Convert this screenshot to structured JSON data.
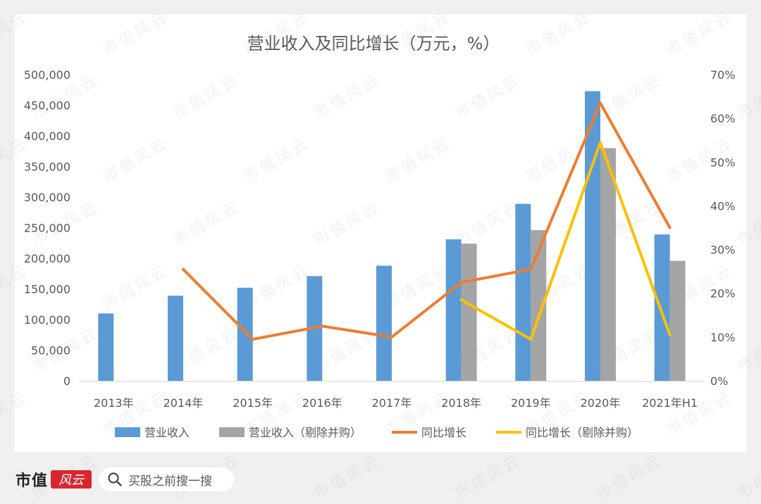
{
  "chart_data": {
    "type": "bar+line",
    "title": "营业收入及同比增长（万元，%）",
    "categories": [
      "2013年",
      "2014年",
      "2015年",
      "2016年",
      "2017年",
      "2018年",
      "2019年",
      "2020年",
      "2021年H1"
    ],
    "y_left": {
      "range": [
        0,
        500000
      ],
      "ticks": [
        "0",
        "50,000",
        "100,000",
        "150,000",
        "200,000",
        "250,000",
        "300,000",
        "350,000",
        "400,000",
        "450,000",
        "500,000"
      ]
    },
    "y_right": {
      "range": [
        0,
        70
      ],
      "ticks": [
        "0%",
        "10%",
        "20%",
        "30%",
        "40%",
        "50%",
        "60%",
        "70%"
      ]
    },
    "series": [
      {
        "name": "营业收入",
        "kind": "bar",
        "axis": "left",
        "color": "#5b9bd5",
        "values": [
          110000,
          139000,
          152000,
          171000,
          188000,
          231000,
          289000,
          473000,
          239000
        ]
      },
      {
        "name": "营业收入（剔除并购）",
        "kind": "bar",
        "axis": "left",
        "color": "#a5a5a5",
        "values": [
          null,
          null,
          null,
          null,
          null,
          224000,
          246000,
          380000,
          196000
        ]
      },
      {
        "name": "同比增长",
        "kind": "line",
        "axis": "right",
        "color": "#ed7d31",
        "values": [
          null,
          25.5,
          9.5,
          12.5,
          10.0,
          22.5,
          25.5,
          63.5,
          35.0
        ]
      },
      {
        "name": "同比增长（剔除并购）",
        "kind": "line",
        "axis": "right",
        "color": "#ffc000",
        "values": [
          null,
          null,
          null,
          null,
          null,
          18.5,
          9.5,
          54.5,
          10.5
        ]
      }
    ],
    "legend_position": "bottom",
    "grid": false
  },
  "watermark": "市值风云",
  "footer": {
    "brand_name": "市值",
    "brand_logo_text": "风云",
    "search_text": "买股之前搜一搜"
  }
}
